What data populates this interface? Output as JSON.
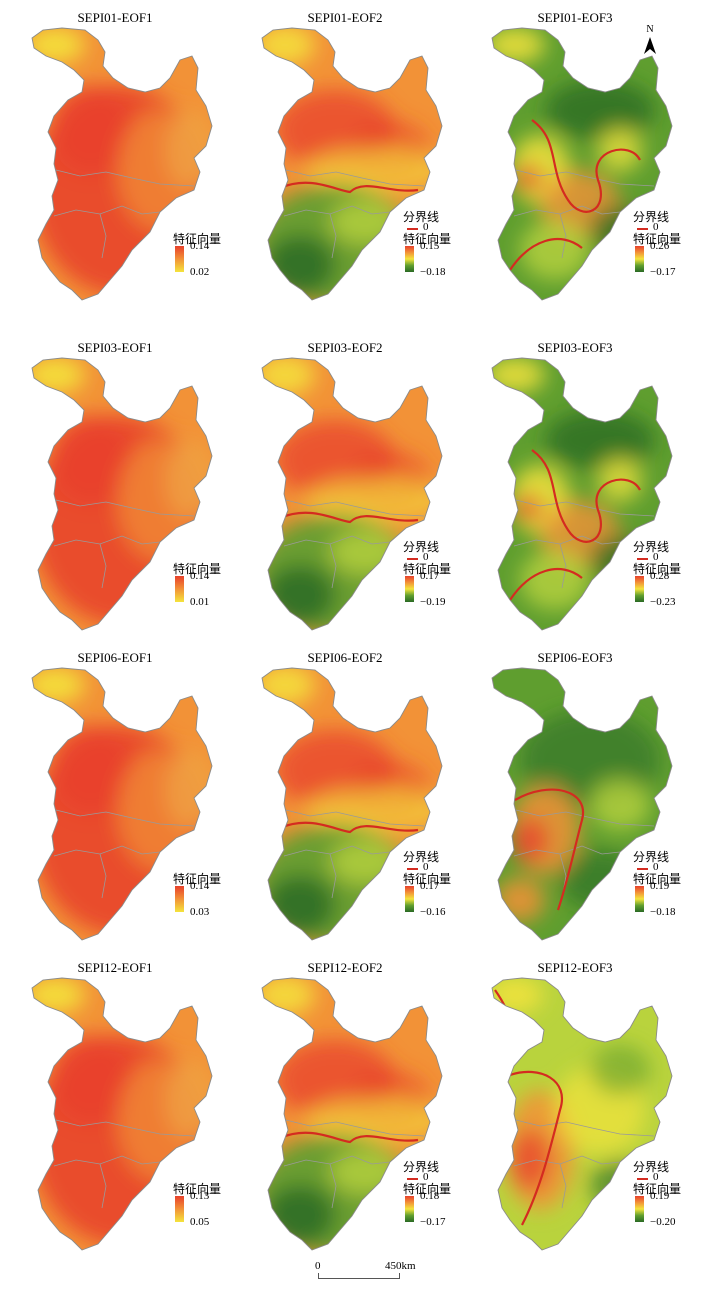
{
  "map": {
    "north_label": "N",
    "scale": {
      "zero": "0",
      "distance": "450km"
    },
    "legend": {
      "title": "特征向量",
      "boundary_title": "分界线",
      "boundary_value": "0",
      "boundary_color": "#d42b20"
    },
    "colors": {
      "red": "#e8402c",
      "orange": "#f29237",
      "yellow": "#f4e43c",
      "yellowgreen": "#b9d33d",
      "green": "#5f9e2f",
      "darkgreen": "#2a6a24"
    },
    "panels": [
      {
        "title": "SEPI01-EOF1",
        "max": "0.14",
        "min": "0.02",
        "pattern": "eof1",
        "boundary": false
      },
      {
        "title": "SEPI01-EOF2",
        "max": "0.15",
        "min": "−0.18",
        "pattern": "eof2",
        "boundary": true
      },
      {
        "title": "SEPI01-EOF3",
        "max": "0.26",
        "min": "−0.17",
        "pattern": "eof3",
        "boundary": true
      },
      {
        "title": "SEPI03-EOF1",
        "max": "0.14",
        "min": "0.01",
        "pattern": "eof1",
        "boundary": false
      },
      {
        "title": "SEPI03-EOF2",
        "max": "0.17",
        "min": "−0.19",
        "pattern": "eof2",
        "boundary": true
      },
      {
        "title": "SEPI03-EOF3",
        "max": "0.28",
        "min": "−0.23",
        "pattern": "eof3",
        "boundary": true
      },
      {
        "title": "SEPI06-EOF1",
        "max": "0.14",
        "min": "0.03",
        "pattern": "eof1",
        "boundary": false
      },
      {
        "title": "SEPI06-EOF2",
        "max": "0.17",
        "min": "−0.16",
        "pattern": "eof2",
        "boundary": true
      },
      {
        "title": "SEPI06-EOF3",
        "max": "0.19",
        "min": "−0.18",
        "pattern": "eof3b",
        "boundary": true
      },
      {
        "title": "SEPI12-EOF1",
        "max": "0.13",
        "min": "0.05",
        "pattern": "eof1",
        "boundary": false
      },
      {
        "title": "SEPI12-EOF2",
        "max": "0.18",
        "min": "−0.17",
        "pattern": "eof2",
        "boundary": true
      },
      {
        "title": "SEPI12-EOF3",
        "max": "0.19",
        "min": "−0.20",
        "pattern": "eof3c",
        "boundary": true
      }
    ]
  }
}
